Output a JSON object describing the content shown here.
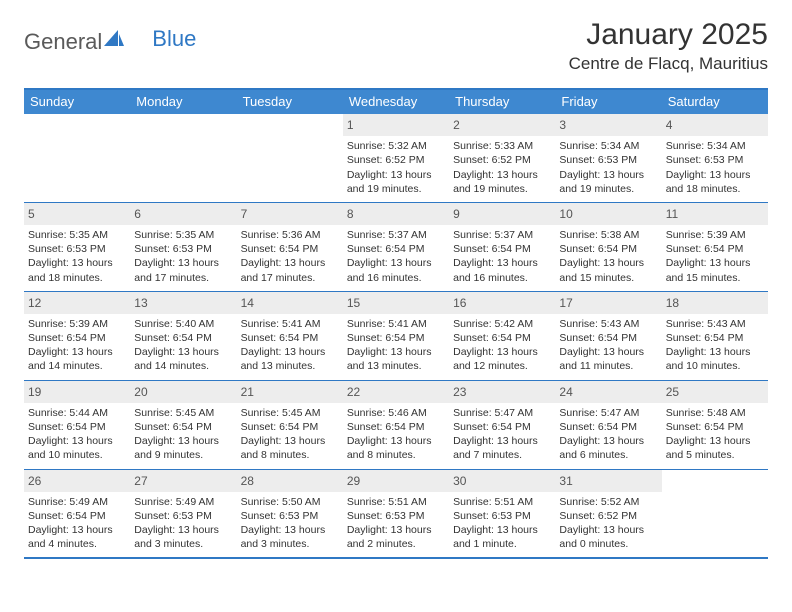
{
  "brand": {
    "general": "General",
    "blue": "Blue"
  },
  "title": "January 2025",
  "location": "Centre de Flacq, Mauritius",
  "colors": {
    "header_bg": "#3e88d0",
    "border": "#2f78c4",
    "daynum_bg": "#ededed",
    "text": "#333333"
  },
  "daysOfWeek": [
    "Sunday",
    "Monday",
    "Tuesday",
    "Wednesday",
    "Thursday",
    "Friday",
    "Saturday"
  ],
  "weeks": [
    [
      {
        "n": "",
        "sr": "",
        "ss": "",
        "d1": "",
        "d2": ""
      },
      {
        "n": "",
        "sr": "",
        "ss": "",
        "d1": "",
        "d2": ""
      },
      {
        "n": "",
        "sr": "",
        "ss": "",
        "d1": "",
        "d2": ""
      },
      {
        "n": "1",
        "sr": "Sunrise: 5:32 AM",
        "ss": "Sunset: 6:52 PM",
        "d1": "Daylight: 13 hours",
        "d2": "and 19 minutes."
      },
      {
        "n": "2",
        "sr": "Sunrise: 5:33 AM",
        "ss": "Sunset: 6:52 PM",
        "d1": "Daylight: 13 hours",
        "d2": "and 19 minutes."
      },
      {
        "n": "3",
        "sr": "Sunrise: 5:34 AM",
        "ss": "Sunset: 6:53 PM",
        "d1": "Daylight: 13 hours",
        "d2": "and 19 minutes."
      },
      {
        "n": "4",
        "sr": "Sunrise: 5:34 AM",
        "ss": "Sunset: 6:53 PM",
        "d1": "Daylight: 13 hours",
        "d2": "and 18 minutes."
      }
    ],
    [
      {
        "n": "5",
        "sr": "Sunrise: 5:35 AM",
        "ss": "Sunset: 6:53 PM",
        "d1": "Daylight: 13 hours",
        "d2": "and 18 minutes."
      },
      {
        "n": "6",
        "sr": "Sunrise: 5:35 AM",
        "ss": "Sunset: 6:53 PM",
        "d1": "Daylight: 13 hours",
        "d2": "and 17 minutes."
      },
      {
        "n": "7",
        "sr": "Sunrise: 5:36 AM",
        "ss": "Sunset: 6:54 PM",
        "d1": "Daylight: 13 hours",
        "d2": "and 17 minutes."
      },
      {
        "n": "8",
        "sr": "Sunrise: 5:37 AM",
        "ss": "Sunset: 6:54 PM",
        "d1": "Daylight: 13 hours",
        "d2": "and 16 minutes."
      },
      {
        "n": "9",
        "sr": "Sunrise: 5:37 AM",
        "ss": "Sunset: 6:54 PM",
        "d1": "Daylight: 13 hours",
        "d2": "and 16 minutes."
      },
      {
        "n": "10",
        "sr": "Sunrise: 5:38 AM",
        "ss": "Sunset: 6:54 PM",
        "d1": "Daylight: 13 hours",
        "d2": "and 15 minutes."
      },
      {
        "n": "11",
        "sr": "Sunrise: 5:39 AM",
        "ss": "Sunset: 6:54 PM",
        "d1": "Daylight: 13 hours",
        "d2": "and 15 minutes."
      }
    ],
    [
      {
        "n": "12",
        "sr": "Sunrise: 5:39 AM",
        "ss": "Sunset: 6:54 PM",
        "d1": "Daylight: 13 hours",
        "d2": "and 14 minutes."
      },
      {
        "n": "13",
        "sr": "Sunrise: 5:40 AM",
        "ss": "Sunset: 6:54 PM",
        "d1": "Daylight: 13 hours",
        "d2": "and 14 minutes."
      },
      {
        "n": "14",
        "sr": "Sunrise: 5:41 AM",
        "ss": "Sunset: 6:54 PM",
        "d1": "Daylight: 13 hours",
        "d2": "and 13 minutes."
      },
      {
        "n": "15",
        "sr": "Sunrise: 5:41 AM",
        "ss": "Sunset: 6:54 PM",
        "d1": "Daylight: 13 hours",
        "d2": "and 13 minutes."
      },
      {
        "n": "16",
        "sr": "Sunrise: 5:42 AM",
        "ss": "Sunset: 6:54 PM",
        "d1": "Daylight: 13 hours",
        "d2": "and 12 minutes."
      },
      {
        "n": "17",
        "sr": "Sunrise: 5:43 AM",
        "ss": "Sunset: 6:54 PM",
        "d1": "Daylight: 13 hours",
        "d2": "and 11 minutes."
      },
      {
        "n": "18",
        "sr": "Sunrise: 5:43 AM",
        "ss": "Sunset: 6:54 PM",
        "d1": "Daylight: 13 hours",
        "d2": "and 10 minutes."
      }
    ],
    [
      {
        "n": "19",
        "sr": "Sunrise: 5:44 AM",
        "ss": "Sunset: 6:54 PM",
        "d1": "Daylight: 13 hours",
        "d2": "and 10 minutes."
      },
      {
        "n": "20",
        "sr": "Sunrise: 5:45 AM",
        "ss": "Sunset: 6:54 PM",
        "d1": "Daylight: 13 hours",
        "d2": "and 9 minutes."
      },
      {
        "n": "21",
        "sr": "Sunrise: 5:45 AM",
        "ss": "Sunset: 6:54 PM",
        "d1": "Daylight: 13 hours",
        "d2": "and 8 minutes."
      },
      {
        "n": "22",
        "sr": "Sunrise: 5:46 AM",
        "ss": "Sunset: 6:54 PM",
        "d1": "Daylight: 13 hours",
        "d2": "and 8 minutes."
      },
      {
        "n": "23",
        "sr": "Sunrise: 5:47 AM",
        "ss": "Sunset: 6:54 PM",
        "d1": "Daylight: 13 hours",
        "d2": "and 7 minutes."
      },
      {
        "n": "24",
        "sr": "Sunrise: 5:47 AM",
        "ss": "Sunset: 6:54 PM",
        "d1": "Daylight: 13 hours",
        "d2": "and 6 minutes."
      },
      {
        "n": "25",
        "sr": "Sunrise: 5:48 AM",
        "ss": "Sunset: 6:54 PM",
        "d1": "Daylight: 13 hours",
        "d2": "and 5 minutes."
      }
    ],
    [
      {
        "n": "26",
        "sr": "Sunrise: 5:49 AM",
        "ss": "Sunset: 6:54 PM",
        "d1": "Daylight: 13 hours",
        "d2": "and 4 minutes."
      },
      {
        "n": "27",
        "sr": "Sunrise: 5:49 AM",
        "ss": "Sunset: 6:53 PM",
        "d1": "Daylight: 13 hours",
        "d2": "and 3 minutes."
      },
      {
        "n": "28",
        "sr": "Sunrise: 5:50 AM",
        "ss": "Sunset: 6:53 PM",
        "d1": "Daylight: 13 hours",
        "d2": "and 3 minutes."
      },
      {
        "n": "29",
        "sr": "Sunrise: 5:51 AM",
        "ss": "Sunset: 6:53 PM",
        "d1": "Daylight: 13 hours",
        "d2": "and 2 minutes."
      },
      {
        "n": "30",
        "sr": "Sunrise: 5:51 AM",
        "ss": "Sunset: 6:53 PM",
        "d1": "Daylight: 13 hours",
        "d2": "and 1 minute."
      },
      {
        "n": "31",
        "sr": "Sunrise: 5:52 AM",
        "ss": "Sunset: 6:52 PM",
        "d1": "Daylight: 13 hours",
        "d2": "and 0 minutes."
      },
      {
        "n": "",
        "sr": "",
        "ss": "",
        "d1": "",
        "d2": ""
      }
    ]
  ]
}
